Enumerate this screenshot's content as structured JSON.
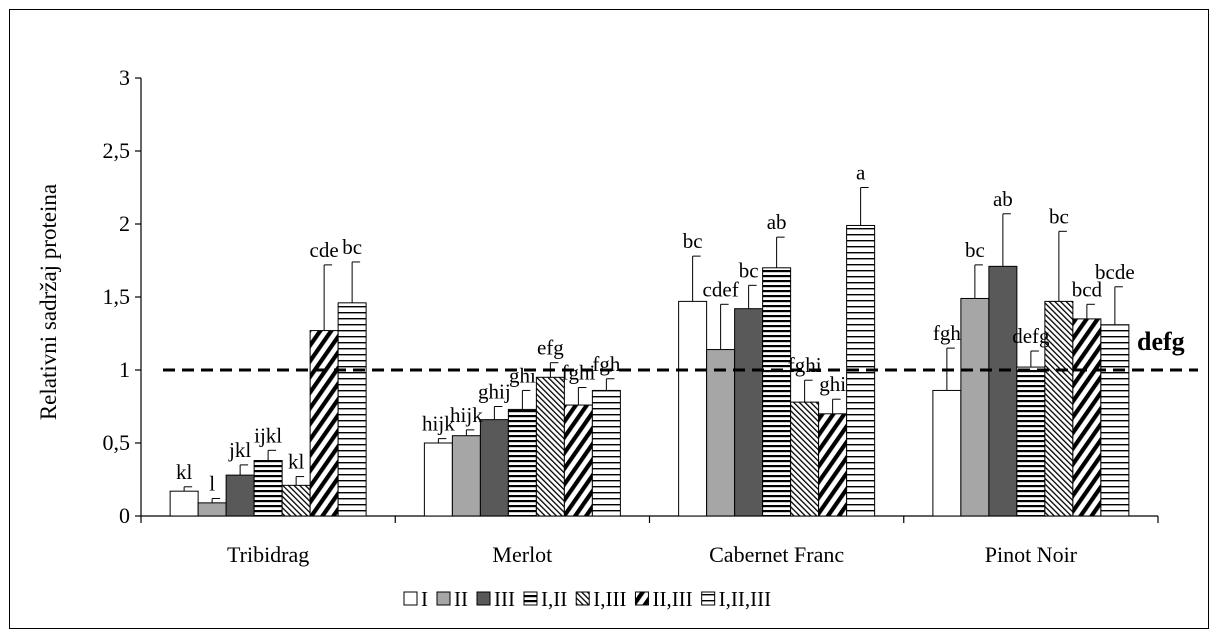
{
  "chart_data": {
    "type": "bar",
    "ylabel": "Relativni sadržaj proteina",
    "ylim": [
      0,
      3
    ],
    "yticks": [
      "0",
      "0,5",
      "1",
      "1,5",
      "2",
      "2,5",
      "3"
    ],
    "ytick_values": [
      0,
      0.5,
      1,
      1.5,
      2,
      2.5,
      3
    ],
    "reference_line": {
      "value": 1,
      "style": "dashed",
      "label": "defg"
    },
    "categories": [
      "Tribidrag",
      "Merlot",
      "Cabernet Franc",
      "Pinot Noir"
    ],
    "series": [
      {
        "name": "I",
        "pattern": "white",
        "values": [
          0.17,
          0.5,
          1.47,
          0.86
        ],
        "errors": [
          0.03,
          0.03,
          0.31,
          0.29
        ],
        "letters": [
          "kl",
          "hijk",
          "bc",
          "fgh"
        ]
      },
      {
        "name": "II",
        "pattern": "gray",
        "values": [
          0.09,
          0.55,
          1.14,
          1.49
        ],
        "errors": [
          0.03,
          0.04,
          0.31,
          0.23
        ],
        "letters": [
          "l",
          "hijk",
          "cdef",
          "bc"
        ]
      },
      {
        "name": "III",
        "pattern": "darkgray",
        "values": [
          0.28,
          0.66,
          1.42,
          1.71
        ],
        "errors": [
          0.07,
          0.09,
          0.16,
          0.36
        ],
        "letters": [
          "jkl",
          "ghij",
          "bc",
          "ab"
        ]
      },
      {
        "name": "I,II",
        "pattern": "hlines",
        "values": [
          0.38,
          0.73,
          1.7,
          1.02
        ],
        "errors": [
          0.07,
          0.13,
          0.21,
          0.11
        ],
        "letters": [
          "ijkl",
          "ghi",
          "ab",
          "defg"
        ]
      },
      {
        "name": "I,III",
        "pattern": "diagfine",
        "values": [
          0.21,
          0.95,
          0.78,
          1.47
        ],
        "errors": [
          0.06,
          0.1,
          0.15,
          0.48
        ],
        "letters": [
          "kl",
          "efg",
          "fghi",
          "bc"
        ]
      },
      {
        "name": "II,III",
        "pattern": "diagbold",
        "values": [
          1.27,
          0.76,
          0.7,
          1.35
        ],
        "errors": [
          0.45,
          0.12,
          0.1,
          0.1
        ],
        "letters": [
          "cde",
          "fghi",
          "ghi",
          "bcd"
        ]
      },
      {
        "name": "I,II,III",
        "pattern": "hlineswide",
        "values": [
          1.46,
          0.86,
          1.99,
          1.31
        ],
        "errors": [
          0.28,
          0.08,
          0.26,
          0.26
        ],
        "letters": [
          "bc",
          "fgh",
          "a",
          "bcde"
        ]
      }
    ],
    "legend": {
      "placement": "bottom-center"
    },
    "grid": false
  }
}
